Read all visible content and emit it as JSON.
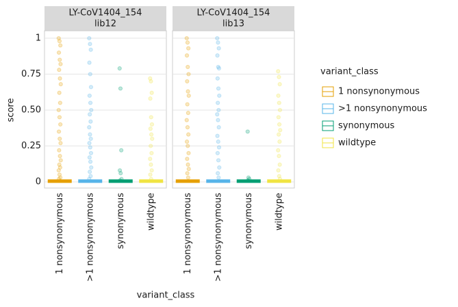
{
  "chart_data": {
    "type": "box",
    "x_label": "variant_class",
    "y_label": "score",
    "legend_title": "variant_class",
    "legend": "right",
    "grid": true,
    "categories": [
      "1 nonsynonymous",
      ">1 nonsynonymous",
      "synonymous",
      "wildtype"
    ],
    "colors": [
      "#E69F00",
      "#56B4E9",
      "#009E73",
      "#F0E442"
    ],
    "ylim": [
      -0.043,
      1.052
    ],
    "yticks": [
      0,
      0.25,
      {
        "value": 0.5,
        "label": "0.50"
      },
      0.75,
      1
    ],
    "facets": [
      {
        "title": "LY-CoV1404_154",
        "subtitle": "lib12",
        "series": [
          {
            "q1": 0,
            "median": 0,
            "q3": 0.01,
            "values": [
              1,
              0.98,
              0.95,
              0.9,
              0.85,
              0.82,
              0.78,
              0.72,
              0.68,
              0.62,
              0.55,
              0.5,
              0.45,
              0.4,
              0.35,
              0.3,
              0.27,
              0.22,
              0.18,
              0.15,
              0.12,
              0.1,
              0.08,
              0.05,
              0.03,
              0.02
            ]
          },
          {
            "q1": 0,
            "median": 0,
            "q3": 0.01,
            "values": [
              1,
              0.96,
              0.92,
              0.83,
              0.75,
              0.66,
              0.6,
              0.55,
              0.5,
              0.47,
              0.42,
              0.38,
              0.33,
              0.3,
              0.27,
              0.24,
              0.2,
              0.17,
              0.14,
              0.1,
              0.07,
              0.04,
              0.02
            ]
          },
          {
            "q1": 0,
            "median": 0,
            "q3": 0.01,
            "values": [
              0.79,
              0.65,
              0.22,
              0.08,
              0.06,
              0.02,
              0.01
            ]
          },
          {
            "q1": 0,
            "median": 0,
            "q3": 0.01,
            "values": [
              0.72,
              0.7,
              0.62,
              0.58,
              0.45,
              0.4,
              0.37,
              0.33,
              0.3,
              0.25,
              0.2,
              0.16,
              0.12,
              0.08,
              0.05,
              0.02
            ]
          }
        ]
      },
      {
        "title": "LY-CoV1404_154",
        "subtitle": "lib13",
        "series": [
          {
            "q1": 0,
            "median": 0,
            "q3": 0.01,
            "values": [
              1,
              0.97,
              0.93,
              0.88,
              0.8,
              0.75,
              0.7,
              0.63,
              0.6,
              0.54,
              0.48,
              0.43,
              0.38,
              0.33,
              0.28,
              0.25,
              0.2,
              0.16,
              0.12,
              0.09,
              0.06,
              0.03
            ]
          },
          {
            "q1": 0,
            "median": 0,
            "q3": 0.01,
            "values": [
              1,
              0.97,
              0.93,
              0.88,
              0.8,
              0.79,
              0.72,
              0.65,
              0.6,
              0.55,
              0.5,
              0.47,
              0.43,
              0.38,
              0.32,
              0.28,
              0.24,
              0.2,
              0.15,
              0.1,
              0.06,
              0.03
            ]
          },
          {
            "q1": 0,
            "median": 0,
            "q3": 0.01,
            "values": [
              0.35,
              0.03,
              0.02,
              0.01
            ]
          },
          {
            "q1": 0,
            "median": 0,
            "q3": 0.01,
            "values": [
              0.77,
              0.73,
              0.68,
              0.6,
              0.55,
              0.5,
              0.45,
              0.4,
              0.36,
              0.33,
              0.28,
              0.22,
              0.18,
              0.12,
              0.08,
              0.04,
              0.02
            ]
          }
        ]
      }
    ]
  }
}
